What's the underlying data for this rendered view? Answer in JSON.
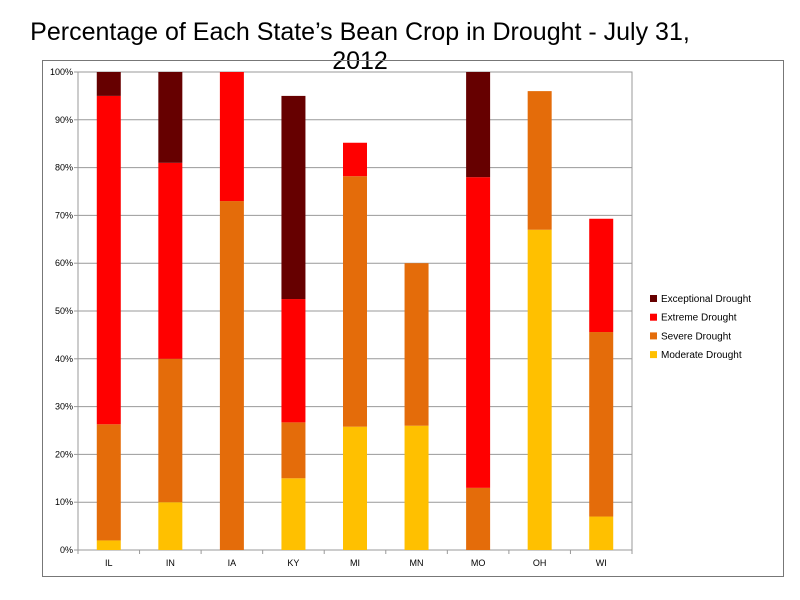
{
  "chart_data": {
    "type": "bar",
    "stacked": true,
    "title": "Percentage of Each State’s Bean Crop in Drought - July 31, 2012",
    "categories": [
      "IL",
      "IN",
      "IA",
      "KY",
      "MI",
      "MN",
      "MO",
      "OH",
      "WI"
    ],
    "series": [
      {
        "name": "Moderate Drought",
        "color": "#FFC000",
        "values": [
          2,
          10,
          0,
          15,
          25.8,
          26,
          0,
          67,
          7
        ]
      },
      {
        "name": "Severe Drought",
        "color": "#E46C0A",
        "values": [
          24.3,
          30,
          73,
          11.7,
          52.4,
          34,
          13,
          29,
          38.6
        ]
      },
      {
        "name": "Extreme Drought",
        "color": "#FF0000",
        "values": [
          68.7,
          41,
          27,
          25.8,
          7,
          0,
          65,
          0,
          23.7
        ]
      },
      {
        "name": "Exceptional Drought",
        "color": "#660000",
        "values": [
          5,
          19,
          0,
          42.5,
          0,
          0,
          22,
          0,
          0
        ]
      }
    ],
    "yticks": [
      "0%",
      "10%",
      "20%",
      "30%",
      "40%",
      "50%",
      "60%",
      "70%",
      "80%",
      "90%",
      "100%"
    ],
    "ylim": [
      0,
      100
    ],
    "grid": true,
    "legend_order": [
      "Exceptional Drought",
      "Extreme Drought",
      "Severe Drought",
      "Moderate Drought"
    ],
    "legend_position": "right"
  }
}
